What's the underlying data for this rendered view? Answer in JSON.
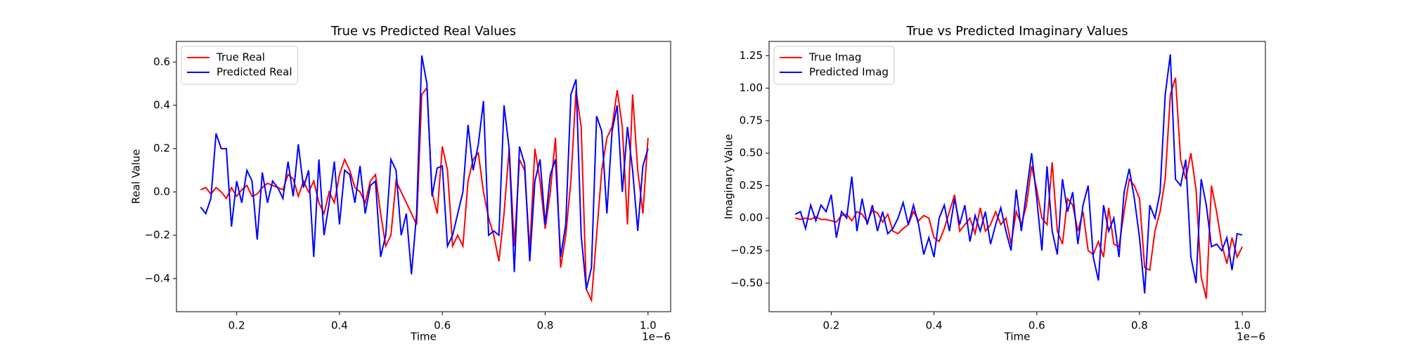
{
  "chart_data": [
    {
      "type": "line",
      "title": "True vs Predicted Real Values",
      "xlabel": "Time",
      "ylabel": "Real Value",
      "x_offset_text": "1e−6",
      "x": [
        0.13,
        0.14,
        0.15,
        0.16,
        0.17,
        0.18,
        0.19,
        0.2,
        0.21,
        0.22,
        0.23,
        0.24,
        0.25,
        0.26,
        0.27,
        0.28,
        0.29,
        0.3,
        0.31,
        0.32,
        0.33,
        0.34,
        0.35,
        0.36,
        0.37,
        0.38,
        0.39,
        0.4,
        0.41,
        0.42,
        0.43,
        0.44,
        0.45,
        0.46,
        0.47,
        0.48,
        0.49,
        0.5,
        0.51,
        0.52,
        0.53,
        0.54,
        0.55,
        0.56,
        0.57,
        0.58,
        0.59,
        0.6,
        0.61,
        0.62,
        0.63,
        0.64,
        0.65,
        0.66,
        0.67,
        0.68,
        0.69,
        0.7,
        0.71,
        0.72,
        0.73,
        0.74,
        0.75,
        0.76,
        0.77,
        0.78,
        0.79,
        0.8,
        0.81,
        0.82,
        0.83,
        0.84,
        0.85,
        0.86,
        0.87,
        0.88,
        0.89,
        0.9,
        0.91,
        0.92,
        0.93,
        0.94,
        0.95,
        0.96,
        0.97,
        0.98,
        0.99,
        1.0
      ],
      "series": [
        {
          "name": "True Real",
          "color": "#ff0000",
          "values": [
            0.01,
            0.02,
            -0.01,
            0.02,
            0.0,
            -0.03,
            0.02,
            -0.02,
            0.01,
            0.03,
            -0.02,
            -0.01,
            0.02,
            0.04,
            0.03,
            0.02,
            0.01,
            0.08,
            0.06,
            -0.02,
            0.05,
            0.0,
            0.05,
            -0.05,
            -0.1,
            0.0,
            -0.05,
            0.08,
            0.15,
            0.1,
            0.02,
            0.0,
            -0.05,
            0.05,
            0.08,
            -0.1,
            -0.25,
            -0.2,
            0.05,
            0.0,
            -0.05,
            -0.1,
            -0.15,
            0.45,
            0.48,
            0.0,
            -0.1,
            0.21,
            0.1,
            -0.25,
            -0.2,
            -0.25,
            0.05,
            0.15,
            0.18,
            0.0,
            -0.12,
            -0.2,
            -0.32,
            -0.1,
            0.2,
            -0.25,
            0.15,
            0.1,
            -0.27,
            0.2,
            0.05,
            -0.17,
            0.0,
            0.25,
            -0.35,
            -0.2,
            0.05,
            0.47,
            0.3,
            -0.45,
            -0.5,
            -0.2,
            0.1,
            0.25,
            0.3,
            0.47,
            0.3,
            -0.15,
            0.45,
            0.1,
            -0.1,
            0.25
          ]
        },
        {
          "name": "Predicted Real",
          "color": "#0000ff",
          "values": [
            -0.07,
            -0.1,
            -0.03,
            0.27,
            0.2,
            0.2,
            -0.16,
            0.05,
            -0.05,
            0.1,
            0.05,
            -0.22,
            0.09,
            -0.05,
            0.05,
            0.02,
            -0.03,
            0.14,
            -0.02,
            0.22,
            0.02,
            0.1,
            -0.3,
            0.15,
            -0.2,
            -0.05,
            0.14,
            -0.15,
            0.1,
            0.08,
            -0.05,
            0.12,
            -0.1,
            0.03,
            0.05,
            -0.3,
            -0.2,
            0.15,
            0.1,
            -0.2,
            -0.1,
            -0.38,
            -0.1,
            0.63,
            0.5,
            -0.02,
            0.11,
            0.12,
            -0.25,
            -0.2,
            -0.1,
            0.0,
            0.31,
            0.1,
            0.22,
            0.42,
            -0.2,
            -0.18,
            -0.2,
            0.4,
            0.2,
            -0.37,
            0.21,
            0.13,
            -0.32,
            0.05,
            0.15,
            -0.15,
            0.08,
            0.15,
            -0.3,
            -0.15,
            0.45,
            0.52,
            -0.2,
            -0.45,
            -0.35,
            0.35,
            0.28,
            -0.1,
            0.28,
            0.4,
            0.0,
            0.3,
            0.1,
            -0.18,
            0.12,
            0.2
          ]
        }
      ],
      "xlim": [
        0.083,
        1.044
      ],
      "ylim": [
        -0.553,
        0.695
      ],
      "xticks": [
        0.2,
        0.4,
        0.6,
        0.8,
        {
          "value": 1,
          "label": "1.0"
        }
      ],
      "yticks": [
        {
          "value": -0.4,
          "label": "−0.4"
        },
        {
          "value": -0.2,
          "label": "−0.2"
        },
        {
          "value": 0,
          "label": "0.0"
        },
        0.2,
        0.4,
        0.6
      ],
      "legend": "upper left"
    },
    {
      "type": "line",
      "title": "True vs Predicted Imaginary Values",
      "xlabel": "Time",
      "ylabel": "Imaginary Value",
      "x_offset_text": "1e−6",
      "x": [
        0.13,
        0.14,
        0.15,
        0.16,
        0.17,
        0.18,
        0.19,
        0.2,
        0.21,
        0.22,
        0.23,
        0.24,
        0.25,
        0.26,
        0.27,
        0.28,
        0.29,
        0.3,
        0.31,
        0.32,
        0.33,
        0.34,
        0.35,
        0.36,
        0.37,
        0.38,
        0.39,
        0.4,
        0.41,
        0.42,
        0.43,
        0.44,
        0.45,
        0.46,
        0.47,
        0.48,
        0.49,
        0.5,
        0.51,
        0.52,
        0.53,
        0.54,
        0.55,
        0.56,
        0.57,
        0.58,
        0.59,
        0.6,
        0.61,
        0.62,
        0.63,
        0.64,
        0.65,
        0.66,
        0.67,
        0.68,
        0.69,
        0.7,
        0.71,
        0.72,
        0.73,
        0.74,
        0.75,
        0.76,
        0.77,
        0.78,
        0.79,
        0.8,
        0.81,
        0.82,
        0.83,
        0.84,
        0.85,
        0.86,
        0.87,
        0.88,
        0.89,
        0.9,
        0.91,
        0.92,
        0.93,
        0.94,
        0.95,
        0.96,
        0.97,
        0.98,
        0.99,
        1.0
      ],
      "series": [
        {
          "name": "True Imag",
          "color": "#ff0000",
          "values": [
            0.0,
            -0.01,
            0.0,
            -0.01,
            0.01,
            -0.01,
            -0.01,
            -0.02,
            -0.03,
            0.02,
            0.03,
            -0.02,
            0.05,
            0.03,
            -0.03,
            0.06,
            0.04,
            -0.03,
            0.03,
            -0.1,
            -0.12,
            -0.08,
            -0.05,
            0.05,
            -0.02,
            0.02,
            0.0,
            -0.15,
            -0.18,
            -0.08,
            0.05,
            0.18,
            -0.1,
            -0.05,
            0.0,
            -0.12,
            0.08,
            -0.1,
            -0.05,
            0.05,
            -0.05,
            0.0,
            -0.2,
            0.05,
            -0.05,
            0.1,
            0.4,
            0.22,
            0.0,
            -0.05,
            0.43,
            -0.1,
            -0.2,
            0.15,
            0.1,
            -0.1,
            0.05,
            -0.25,
            -0.28,
            -0.18,
            -0.3,
            0.08,
            -0.2,
            -0.22,
            0.05,
            0.3,
            0.25,
            0.15,
            -0.38,
            -0.4,
            -0.1,
            0.05,
            0.3,
            0.95,
            1.08,
            0.45,
            0.3,
            0.5,
            0.22,
            -0.45,
            -0.62,
            0.25,
            0.05,
            -0.2,
            -0.35,
            -0.15,
            -0.3,
            -0.22
          ]
        },
        {
          "name": "Predicted Imag",
          "color": "#0000ff",
          "values": [
            0.03,
            0.05,
            -0.08,
            0.1,
            -0.02,
            0.1,
            0.05,
            0.18,
            -0.15,
            0.05,
            0.0,
            0.32,
            -0.1,
            0.15,
            -0.05,
            0.1,
            -0.1,
            0.05,
            -0.12,
            -0.08,
            0.0,
            0.12,
            -0.05,
            0.1,
            -0.05,
            -0.28,
            -0.15,
            -0.3,
            0.0,
            0.1,
            -0.1,
            0.15,
            -0.05,
            0.1,
            -0.18,
            0.02,
            -0.1,
            0.05,
            -0.2,
            -0.05,
            0.08,
            -0.1,
            -0.25,
            0.22,
            -0.1,
            0.2,
            0.5,
            0.15,
            -0.25,
            0.4,
            -0.1,
            -0.28,
            0.3,
            0.05,
            0.2,
            -0.2,
            0.1,
            0.25,
            -0.3,
            -0.48,
            0.1,
            -0.1,
            0.0,
            -0.3,
            0.2,
            0.38,
            0.15,
            -0.15,
            -0.58,
            0.1,
            0.0,
            0.2,
            0.95,
            1.26,
            0.3,
            0.25,
            0.45,
            -0.3,
            -0.5,
            0.3,
            0.1,
            -0.22,
            -0.2,
            -0.25,
            -0.15,
            -0.4,
            -0.12,
            -0.13
          ]
        }
      ],
      "xlim": [
        0.079,
        1.045
      ],
      "ylim": [
        -0.72,
        1.36
      ],
      "xticks": [
        0.2,
        0.4,
        0.6,
        0.8,
        {
          "value": 1,
          "label": "1.0"
        }
      ],
      "yticks": [
        {
          "value": -0.5,
          "label": "−0.50"
        },
        {
          "value": -0.25,
          "label": "−0.25"
        },
        {
          "value": 0,
          "label": "0.00"
        },
        0.25,
        {
          "value": 0.5,
          "label": "0.50"
        },
        0.75,
        {
          "value": 1,
          "label": "1.00"
        },
        1.25
      ],
      "legend": "upper left"
    }
  ]
}
